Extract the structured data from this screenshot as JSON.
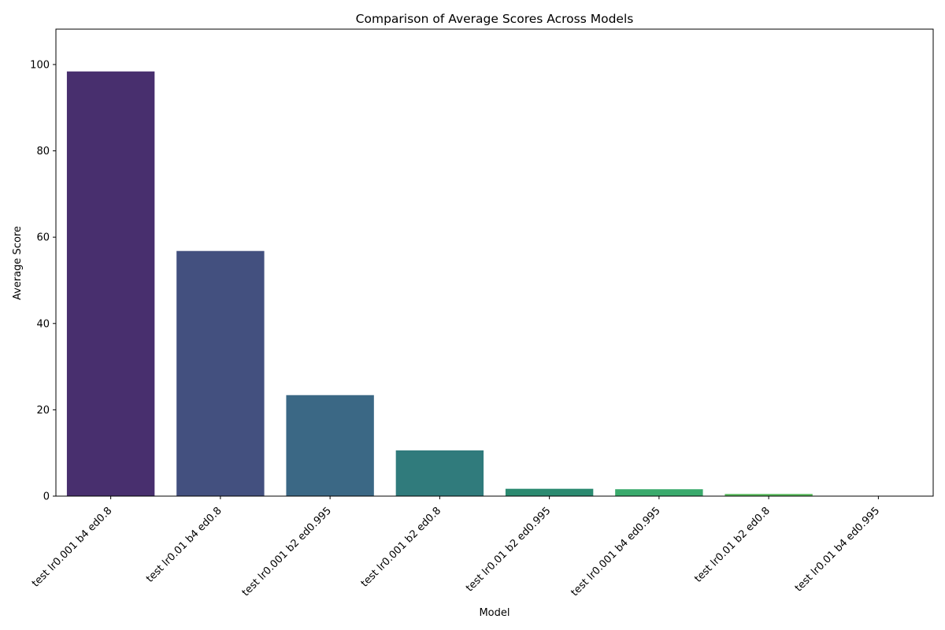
{
  "chart_data": {
    "type": "bar",
    "title": "Comparison of Average Scores Across Models",
    "xlabel": "Model",
    "ylabel": "Average Score",
    "categories": [
      "test lr0.001 b4 ed0.8",
      "test lr0.01 b4 ed0.8",
      "test lr0.001 b2 ed0.995",
      "test lr0.001 b2 ed0.8",
      "test lr0.01 b2 ed0.995",
      "test lr0.001 b4 ed0.995",
      "test lr0.01 b2 ed0.8",
      "test lr0.01 b4 ed0.995"
    ],
    "values": [
      98.4,
      56.8,
      23.4,
      10.6,
      1.7,
      1.6,
      0.5,
      0.05
    ],
    "colors": [
      "#482f6e",
      "#43507f",
      "#3b6885",
      "#307b7c",
      "#2b8a70",
      "#3aaa6c",
      "#58b95b",
      "#78c34e"
    ],
    "ylim": [
      0,
      108.2
    ],
    "yticks": [
      0,
      20,
      40,
      60,
      80,
      100
    ],
    "grid": false,
    "legend": "none"
  }
}
